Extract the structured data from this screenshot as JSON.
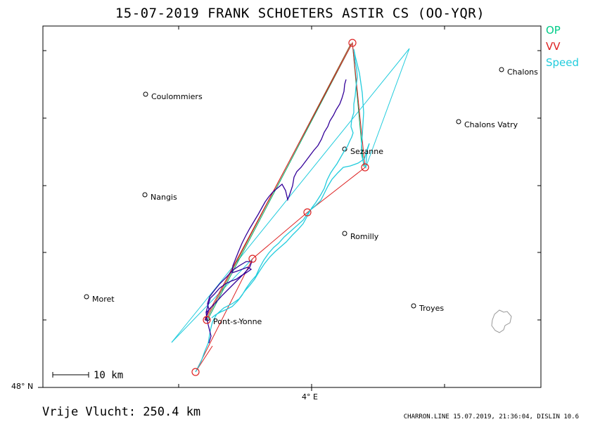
{
  "header": {
    "title": "15-07-2019   FRANK SCHOETERS   ASTIR CS (OO-YQR)"
  },
  "legend": [
    {
      "label": "OP",
      "color": "#00cc88"
    },
    {
      "label": "VV",
      "color": "#dd2222"
    },
    {
      "label": "Speed",
      "color": "#22ccdd"
    }
  ],
  "axes": {
    "lat_label": "48° N",
    "lon_label": "4° E"
  },
  "scale": {
    "label": "10 km"
  },
  "places": [
    {
      "name": "Coulommiers"
    },
    {
      "name": "Chalons"
    },
    {
      "name": "Chalons Vatry"
    },
    {
      "name": "Sezanne"
    },
    {
      "name": "Nangis"
    },
    {
      "name": "Romilly"
    },
    {
      "name": "Moret"
    },
    {
      "name": "Troyes"
    },
    {
      "name": "Pont-s-Yonne"
    }
  ],
  "footer": {
    "distance": "Vrije Vlucht:  250.4 km",
    "credits": "CHARRON.LINE 15.07.2019, 21:36:04, DISLIN 10.6"
  },
  "colors": {
    "track": "#22ccdd",
    "glider": "#330099",
    "vv": "#dd2222",
    "op": "#00aa66",
    "brown": "#885522"
  }
}
